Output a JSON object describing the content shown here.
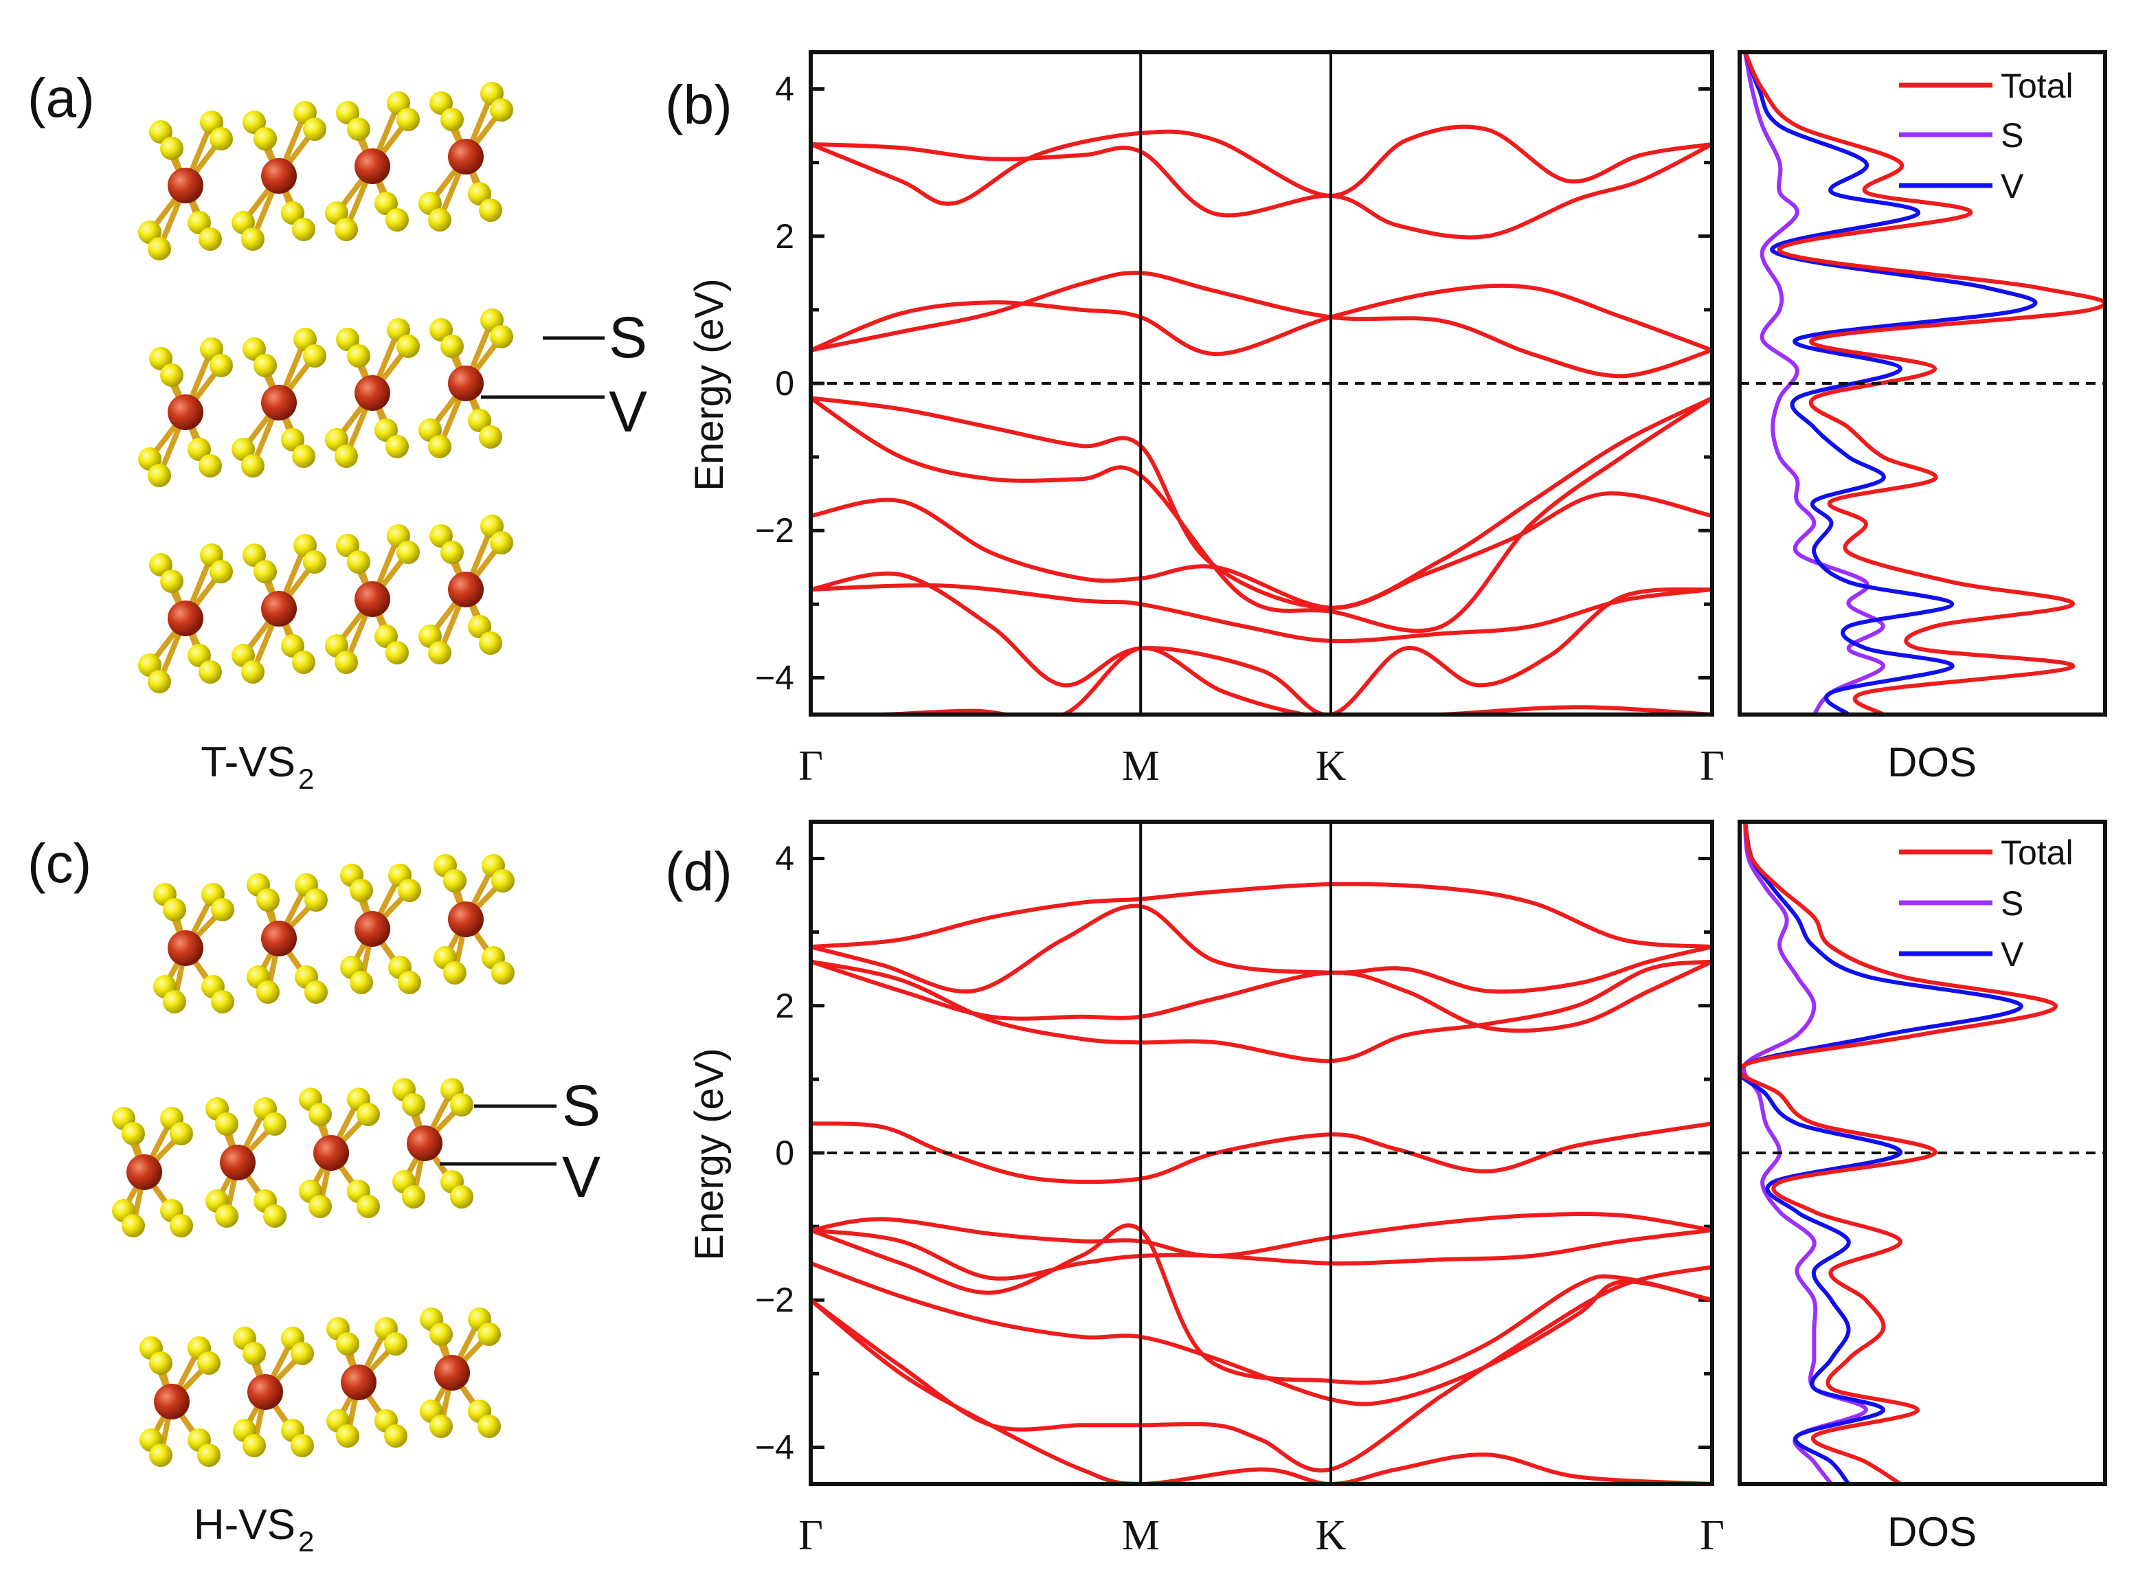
{
  "colors": {
    "band": "#ee1c1c",
    "total": "#ee1c1c",
    "s_dos": "#9b30ff",
    "v_dos": "#1010ee",
    "v_atom": "#c0301a",
    "s_atom": "#f2e600",
    "axis": "#111111"
  },
  "structures": [
    {
      "panel": "(a)",
      "name": "T-VS",
      "subscript": "2",
      "atom_labels": [
        "S",
        "V"
      ],
      "phase": "T"
    },
    {
      "panel": "(c)",
      "name": "H-VS",
      "subscript": "2",
      "atom_labels": [
        "S",
        "V"
      ],
      "phase": "H"
    }
  ],
  "chart_data": [
    {
      "type": "line",
      "panel": "(b)",
      "title": "",
      "xlabel": "",
      "ylabel": "Energy (eV)",
      "ylim": [
        -4.5,
        4.5
      ],
      "yticks": [
        4,
        2,
        0,
        -2,
        -4
      ],
      "x_kpoints": [
        "Γ",
        "M",
        "K",
        "Γ"
      ],
      "kpoint_positions": [
        0,
        0.366,
        0.577,
        1.0
      ],
      "fermi_level": 0,
      "series": [
        {
          "name": "band",
          "x": [
            0,
            0.08,
            0.18,
            0.28,
            0.366,
            0.46,
            0.577,
            0.7,
            0.85,
            1.0
          ],
          "y": [
            -4.5,
            -4.5,
            -4.45,
            -4.5,
            -3.6,
            -4.2,
            -4.55,
            -4.5,
            -4.4,
            -4.5
          ]
        },
        {
          "name": "band",
          "x": [
            0,
            0.1,
            0.2,
            0.28,
            0.366,
            0.5,
            0.577,
            0.66,
            0.74,
            0.82,
            0.9,
            1.0
          ],
          "y": [
            -2.8,
            -2.6,
            -3.3,
            -4.1,
            -3.6,
            -3.9,
            -4.5,
            -3.6,
            -4.1,
            -3.7,
            -2.9,
            -2.8
          ]
        },
        {
          "name": "band",
          "x": [
            0,
            0.15,
            0.3,
            0.366,
            0.48,
            0.577,
            0.7,
            0.8,
            0.9,
            1.0
          ],
          "y": [
            -2.8,
            -2.75,
            -2.95,
            -3.0,
            -3.3,
            -3.5,
            -3.4,
            -3.3,
            -2.95,
            -2.8
          ]
        },
        {
          "name": "band",
          "x": [
            0,
            0.1,
            0.2,
            0.3,
            0.366,
            0.45,
            0.577,
            0.68,
            0.78,
            0.88,
            1.0
          ],
          "y": [
            -1.8,
            -1.6,
            -2.3,
            -2.65,
            -2.65,
            -2.5,
            -3.05,
            -2.6,
            -2.1,
            -1.5,
            -1.8
          ]
        },
        {
          "name": "band",
          "x": [
            0,
            0.1,
            0.2,
            0.3,
            0.366,
            0.48,
            0.577,
            0.7,
            0.8,
            0.9,
            1.0
          ],
          "y": [
            -0.2,
            -1.0,
            -1.3,
            -1.3,
            -1.25,
            -2.9,
            -3.1,
            -3.3,
            -1.9,
            -1.0,
            -0.2
          ]
        },
        {
          "name": "band",
          "x": [
            0,
            0.1,
            0.2,
            0.3,
            0.366,
            0.44,
            0.577,
            0.7,
            0.8,
            0.9,
            1.0
          ],
          "y": [
            -0.2,
            -0.35,
            -0.6,
            -0.85,
            -0.85,
            -2.4,
            -3.05,
            -2.4,
            -1.6,
            -0.8,
            -0.2
          ]
        },
        {
          "name": "band",
          "x": [
            0,
            0.1,
            0.2,
            0.3,
            0.366,
            0.45,
            0.577,
            0.7,
            0.8,
            0.9,
            1.0
          ],
          "y": [
            0.45,
            0.95,
            1.1,
            1.0,
            0.9,
            0.4,
            0.9,
            1.25,
            1.3,
            0.9,
            0.45
          ]
        },
        {
          "name": "band",
          "x": [
            0,
            0.1,
            0.2,
            0.3,
            0.366,
            0.45,
            0.577,
            0.7,
            0.8,
            0.9,
            1.0
          ],
          "y": [
            0.45,
            0.7,
            0.95,
            1.35,
            1.5,
            1.25,
            0.9,
            0.85,
            0.4,
            0.1,
            0.45
          ]
        },
        {
          "name": "band",
          "x": [
            0,
            0.1,
            0.2,
            0.3,
            0.366,
            0.45,
            0.577,
            0.65,
            0.75,
            0.85,
            0.92,
            1.0
          ],
          "y": [
            3.25,
            3.2,
            3.05,
            3.1,
            3.15,
            2.3,
            2.55,
            2.15,
            2.0,
            2.5,
            2.75,
            3.25
          ]
        },
        {
          "name": "band",
          "x": [
            0,
            0.1,
            0.16,
            0.25,
            0.366,
            0.45,
            0.577,
            0.66,
            0.75,
            0.84,
            0.92,
            1.0
          ],
          "y": [
            3.25,
            2.75,
            2.45,
            3.1,
            3.4,
            3.3,
            2.55,
            3.3,
            3.45,
            2.75,
            3.1,
            3.25
          ]
        }
      ],
      "dos": {
        "xlabel": "DOS",
        "legend": [
          "Total",
          "S",
          "V"
        ],
        "energy": [
          -4.5,
          -4.2,
          -3.85,
          -3.6,
          -3.3,
          -3.0,
          -2.7,
          -2.3,
          -1.9,
          -1.6,
          -1.3,
          -1.0,
          -0.6,
          -0.2,
          0.2,
          0.6,
          1.0,
          1.3,
          1.8,
          2.3,
          2.6,
          3.0,
          3.5,
          4.0,
          4.5
        ],
        "total": [
          0.4,
          0.35,
          0.95,
          0.5,
          0.55,
          0.95,
          0.6,
          0.3,
          0.35,
          0.25,
          0.55,
          0.4,
          0.3,
          0.2,
          0.55,
          0.2,
          1.0,
          0.85,
          0.1,
          0.65,
          0.35,
          0.45,
          0.15,
          0.05,
          0.0
        ],
        "s": [
          0.2,
          0.25,
          0.4,
          0.3,
          0.4,
          0.3,
          0.35,
          0.15,
          0.2,
          0.15,
          0.15,
          0.1,
          0.08,
          0.1,
          0.15,
          0.05,
          0.1,
          0.1,
          0.05,
          0.15,
          0.1,
          0.1,
          0.05,
          0.02,
          0.0
        ],
        "v": [
          0.3,
          0.25,
          0.6,
          0.35,
          0.3,
          0.6,
          0.3,
          0.2,
          0.25,
          0.2,
          0.4,
          0.3,
          0.2,
          0.15,
          0.45,
          0.15,
          0.8,
          0.7,
          0.08,
          0.5,
          0.25,
          0.35,
          0.1,
          0.04,
          0.0
        ]
      }
    },
    {
      "type": "line",
      "panel": "(d)",
      "title": "",
      "xlabel": "",
      "ylabel": "Energy (eV)",
      "ylim": [
        -4.5,
        4.5
      ],
      "yticks": [
        4,
        2,
        0,
        -2,
        -4
      ],
      "x_kpoints": [
        "Γ",
        "M",
        "K",
        "Γ"
      ],
      "kpoint_positions": [
        0,
        0.366,
        0.577,
        1.0
      ],
      "fermi_level": 0,
      "series": [
        {
          "name": "band",
          "x": [
            0,
            0.1,
            0.2,
            0.3,
            0.366,
            0.5,
            0.577,
            0.65,
            0.75,
            0.85,
            1.0
          ],
          "y": [
            -2.0,
            -3.0,
            -3.7,
            -4.3,
            -4.5,
            -4.3,
            -4.5,
            -4.3,
            -4.1,
            -4.4,
            -4.5
          ]
        },
        {
          "name": "band",
          "x": [
            0,
            0.1,
            0.2,
            0.3,
            0.366,
            0.45,
            0.5,
            0.577,
            0.7,
            0.8,
            0.9,
            1.0
          ],
          "y": [
            -2.0,
            -2.9,
            -3.7,
            -3.7,
            -3.7,
            -3.7,
            -3.9,
            -4.3,
            -3.3,
            -2.5,
            -1.8,
            -1.55
          ]
        },
        {
          "name": "band",
          "x": [
            0,
            0.1,
            0.2,
            0.3,
            0.366,
            0.45,
            0.577,
            0.65,
            0.75,
            0.85,
            0.9,
            1.0
          ],
          "y": [
            -1.5,
            -1.95,
            -2.3,
            -2.5,
            -2.5,
            -2.8,
            -3.35,
            -3.35,
            -2.9,
            -2.2,
            -1.75,
            -2.0
          ]
        },
        {
          "name": "band",
          "x": [
            0,
            0.1,
            0.2,
            0.3,
            0.366,
            0.44,
            0.577,
            0.66,
            0.75,
            0.85,
            0.9,
            1.0
          ],
          "y": [
            -1.05,
            -1.5,
            -1.9,
            -1.4,
            -1.05,
            -2.8,
            -3.1,
            -3.05,
            -2.6,
            -1.8,
            -1.7,
            -2.0
          ]
        },
        {
          "name": "band",
          "x": [
            0,
            0.1,
            0.2,
            0.3,
            0.366,
            0.45,
            0.577,
            0.7,
            0.8,
            0.9,
            1.0
          ],
          "y": [
            -1.05,
            -1.2,
            -1.7,
            -1.5,
            -1.4,
            -1.4,
            -1.5,
            -1.45,
            -1.4,
            -1.2,
            -1.05
          ]
        },
        {
          "name": "band",
          "x": [
            0,
            0.08,
            0.2,
            0.3,
            0.366,
            0.45,
            0.577,
            0.7,
            0.8,
            0.9,
            1.0
          ],
          "y": [
            -1.05,
            -0.9,
            -1.1,
            -1.2,
            -1.2,
            -1.4,
            -1.15,
            -0.95,
            -0.85,
            -0.85,
            -1.05
          ]
        },
        {
          "name": "band",
          "x": [
            0,
            0.08,
            0.15,
            0.25,
            0.366,
            0.45,
            0.577,
            0.65,
            0.75,
            0.85,
            1.0
          ],
          "y": [
            0.4,
            0.35,
            0.0,
            -0.35,
            -0.35,
            0.0,
            0.25,
            0.05,
            -0.25,
            0.1,
            0.4
          ]
        },
        {
          "name": "band",
          "x": [
            0,
            0.1,
            0.2,
            0.3,
            0.366,
            0.45,
            0.577,
            0.66,
            0.75,
            0.85,
            0.93,
            1.0
          ],
          "y": [
            2.6,
            2.35,
            1.8,
            1.55,
            1.5,
            1.5,
            1.25,
            1.6,
            1.75,
            2.0,
            2.5,
            2.6
          ]
        },
        {
          "name": "band",
          "x": [
            0,
            0.1,
            0.2,
            0.3,
            0.366,
            0.45,
            0.577,
            0.66,
            0.75,
            0.85,
            0.93,
            1.0
          ],
          "y": [
            2.6,
            2.2,
            1.85,
            1.85,
            1.85,
            2.1,
            2.45,
            2.2,
            1.7,
            1.75,
            2.2,
            2.6
          ]
        },
        {
          "name": "band",
          "x": [
            0,
            0.08,
            0.18,
            0.28,
            0.366,
            0.45,
            0.577,
            0.66,
            0.75,
            0.85,
            0.93,
            1.0
          ],
          "y": [
            2.8,
            2.55,
            2.2,
            2.9,
            3.35,
            2.6,
            2.45,
            2.5,
            2.2,
            2.3,
            2.6,
            2.8
          ]
        },
        {
          "name": "band",
          "x": [
            0,
            0.1,
            0.2,
            0.3,
            0.366,
            0.45,
            0.577,
            0.7,
            0.8,
            0.9,
            1.0
          ],
          "y": [
            2.8,
            2.9,
            3.2,
            3.4,
            3.45,
            3.55,
            3.65,
            3.6,
            3.4,
            2.9,
            2.8
          ]
        }
      ],
      "dos": {
        "xlabel": "DOS",
        "legend": [
          "Total",
          "S",
          "V"
        ],
        "energy": [
          -4.5,
          -4.2,
          -3.85,
          -3.5,
          -3.2,
          -2.8,
          -2.4,
          -2.0,
          -1.6,
          -1.2,
          -0.8,
          -0.4,
          0.0,
          0.4,
          0.8,
          1.2,
          1.6,
          2.0,
          2.4,
          2.8,
          3.2,
          3.6,
          4.0,
          4.5
        ],
        "total": [
          0.45,
          0.35,
          0.2,
          0.5,
          0.25,
          0.3,
          0.4,
          0.35,
          0.25,
          0.45,
          0.2,
          0.1,
          0.55,
          0.2,
          0.1,
          0.0,
          0.5,
          0.9,
          0.45,
          0.25,
          0.2,
          0.1,
          0.02,
          0.0
        ],
        "s": [
          0.25,
          0.2,
          0.15,
          0.35,
          0.2,
          0.2,
          0.2,
          0.2,
          0.15,
          0.2,
          0.1,
          0.05,
          0.1,
          0.06,
          0.04,
          0.0,
          0.15,
          0.2,
          0.15,
          0.1,
          0.12,
          0.06,
          0.01,
          0.0
        ],
        "v": [
          0.3,
          0.25,
          0.15,
          0.4,
          0.2,
          0.25,
          0.3,
          0.25,
          0.2,
          0.3,
          0.15,
          0.08,
          0.45,
          0.15,
          0.06,
          0.0,
          0.4,
          0.8,
          0.35,
          0.2,
          0.15,
          0.08,
          0.02,
          0.0
        ]
      }
    }
  ]
}
